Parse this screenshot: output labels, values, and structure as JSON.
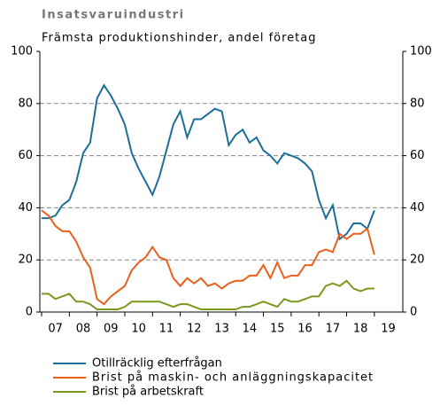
{
  "chart_data": {
    "type": "line",
    "title": "Insatsvaruindustri",
    "subtitle": "Främsta produktionshinder, andel företag",
    "categories": [
      null,
      null,
      "07",
      null,
      null,
      null,
      "08",
      null,
      null,
      null,
      "09",
      null,
      null,
      null,
      "10",
      null,
      null,
      null,
      "11",
      null,
      null,
      null,
      "12",
      null,
      null,
      null,
      "13",
      null,
      null,
      null,
      "14",
      null,
      null,
      null,
      "15",
      null,
      null,
      null,
      "16",
      null,
      null,
      null,
      "17",
      null,
      null,
      null,
      "18",
      null,
      null,
      null,
      "19"
    ],
    "series": [
      {
        "name": "Otillräcklig efterfrågan",
        "color": "#1b6f98",
        "values": [
          36,
          36,
          37,
          41,
          43,
          50,
          61,
          65,
          82,
          87,
          83,
          78,
          72,
          61,
          55,
          50,
          45,
          52,
          62,
          72,
          77,
          67,
          74,
          74,
          76,
          78,
          77,
          64,
          68,
          70,
          65,
          67,
          62,
          60,
          57,
          61,
          60,
          59,
          57,
          54,
          43,
          36,
          41,
          28,
          30,
          34,
          34,
          32,
          39,
          null,
          null
        ]
      },
      {
        "name": "Brist på maskin- och anläggningskapacitet",
        "color": "#e8601c",
        "values": [
          39,
          37,
          33,
          31,
          31,
          27,
          21,
          17,
          5,
          3,
          6,
          8,
          10,
          16,
          19,
          21,
          25,
          21,
          20,
          13,
          10,
          13,
          11,
          13,
          10,
          11,
          9,
          11,
          12,
          12,
          14,
          14,
          18,
          13,
          19,
          13,
          14,
          14,
          18,
          18,
          23,
          24,
          23,
          30,
          28,
          30,
          30,
          32,
          22,
          null,
          null
        ]
      },
      {
        "name": "Brist på arbetskraft",
        "color": "#7a9a1f",
        "values": [
          7,
          7,
          5,
          6,
          7,
          4,
          4,
          3,
          1,
          1,
          1,
          1,
          2,
          4,
          4,
          4,
          4,
          4,
          3,
          2,
          3,
          3,
          2,
          1,
          1,
          1,
          1,
          1,
          1,
          2,
          2,
          3,
          4,
          3,
          2,
          5,
          4,
          4,
          5,
          6,
          6,
          10,
          11,
          10,
          12,
          9,
          8,
          9,
          9,
          null,
          null
        ]
      }
    ],
    "ylim": [
      0,
      100
    ],
    "yticks": [
      0,
      20,
      40,
      60,
      80,
      100
    ],
    "y2lim": [
      0,
      100
    ],
    "y2ticks": [
      0,
      20,
      40,
      60,
      80,
      100
    ],
    "grid": true
  }
}
